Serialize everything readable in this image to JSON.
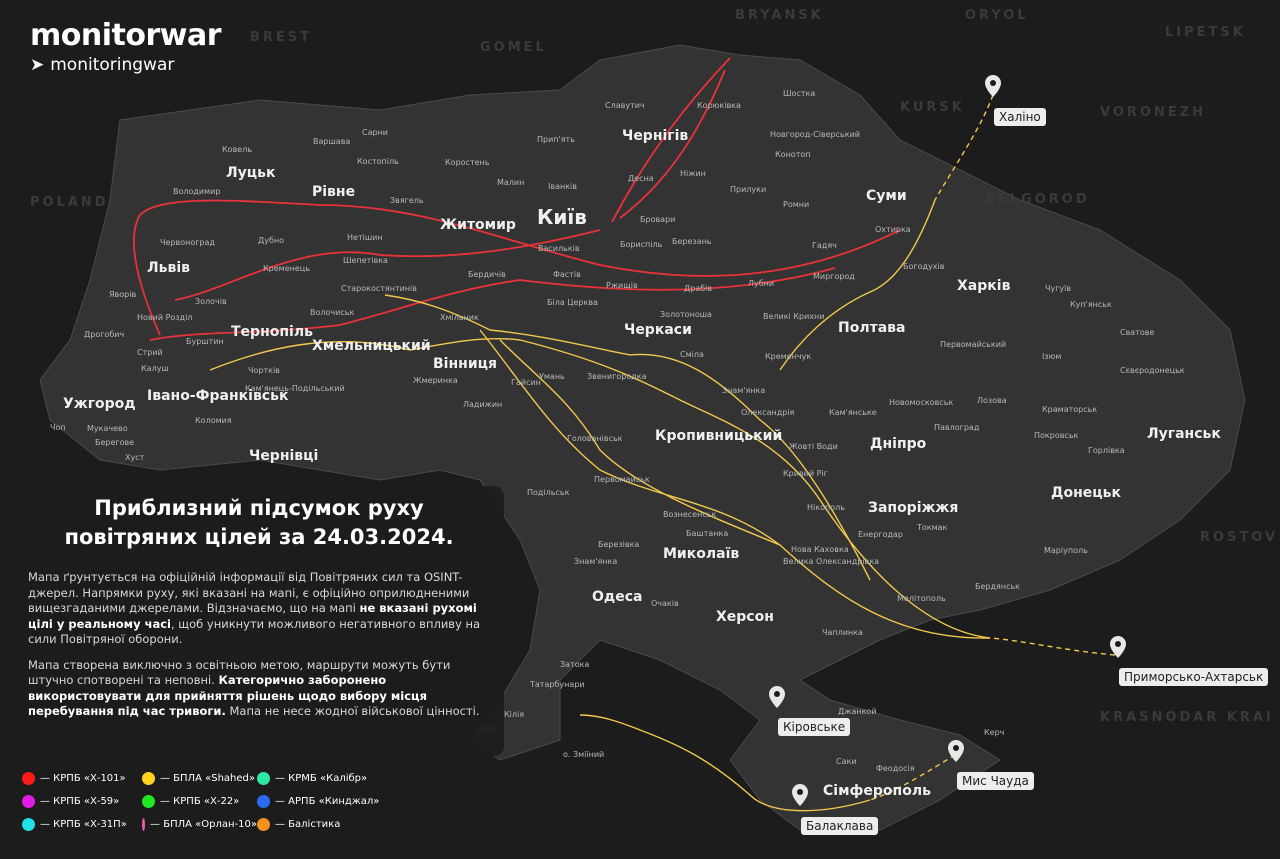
{
  "brand": {
    "name": "monitorwar",
    "telegram": "monitoringwar",
    "icon": "telegram-icon"
  },
  "countries": [
    "POLAND",
    "BRYANSK",
    "ORYOL",
    "LIPETSK",
    "KURSK",
    "VORONEZH",
    "BELGOROD",
    "BREST",
    "GOMEL",
    "KRASNODAR KRAI",
    "ROSTOV"
  ],
  "major_cities": [
    "Київ",
    "Чернігів",
    "Суми",
    "Харків",
    "Полтава",
    "Луцьк",
    "Рівне",
    "Житомир",
    "Львів",
    "Тернопіль",
    "Хмельницький",
    "Вінниця",
    "Черкаси",
    "Івано-Франківськ",
    "Ужгород",
    "Чернівці",
    "Кропивницький",
    "Дніпро",
    "Луганськ",
    "Донецьк",
    "Запоріжжя",
    "Миколаїв",
    "Одеса",
    "Херсон",
    "Сімферополь"
  ],
  "towns": [
    "Славутич",
    "Корюківка",
    "Шостка",
    "Сарни",
    "Ковель",
    "Варшава",
    "Костопіль",
    "Прип'ять",
    "Новгород-Сіверський",
    "Коростень",
    "Малин",
    "Іванків",
    "Ніжин",
    "Конотоп",
    "Прилуки",
    "Ромни",
    "Охтирка",
    "Гадяч",
    "Володимир",
    "Звягель",
    "Деснa",
    "Бровари",
    "Бориспіль",
    "Березань",
    "Червоноград",
    "Дубно",
    "Нетішин",
    "Бердичів",
    "Васильків",
    "Фастів",
    "Біла Церква",
    "Ржищів",
    "Драбів",
    "Лубни",
    "Миргород",
    "Богодухів",
    "Чугуїв",
    "Куп'янськ",
    "Яворів",
    "Золочів",
    "Кременець",
    "Шепетівка",
    "Старокостянтинів",
    "Волочиськ",
    "Хмільник",
    "Золотоноша",
    "Сміла",
    "Великі Крихни",
    "Кременчук",
    "Первомайський",
    "Ізюм",
    "Сватове",
    "Новий Розділ",
    "Бурштин",
    "Дрогобич",
    "Стрий",
    "Калуш",
    "Чортків",
    "Кам'янець-Подільський",
    "Жмеринка",
    "Гайсин",
    "Умань",
    "Звенигородка",
    "Знам'янка",
    "Олександрія",
    "Кам'янське",
    "Новомосковськ",
    "Павлоград",
    "Лозова",
    "Краматорськ",
    "Сєвєродонецьк",
    "Покровськ",
    "Горлівка",
    "Чоп",
    "Мукачево",
    "Берегове",
    "Хуст",
    "Коломия",
    "Ладижин",
    "Голованівськ",
    "Жовті Води",
    "Кривий Ріг",
    "Нікополь",
    "Енергодар",
    "Токмак",
    "Маріуполь",
    "Бердянськ",
    "Мелітополь",
    "Подільськ",
    "Первомайськ",
    "Вознесенськ",
    "Баштанка",
    "Березівка",
    "Знам'янка",
    "Нова Каховка",
    "Велика Олександрівка",
    "Очаків",
    "Чаплинка",
    "Затока",
    "Татарбунари",
    "Ізмаїл",
    "Кілія",
    "о. Зміїний",
    "Джанкой",
    "Керч",
    "Феодосія",
    "Саки"
  ],
  "launch_points": [
    "Халіно",
    "Приморсько-Ахтарськ",
    "Кіровське",
    "Мис Чауда",
    "Балаклава"
  ],
  "panel": {
    "title": "Приблизний підсумок руху повітряних цілей за 24.03.2024.",
    "p1_a": "Мапа ґрунтується на офіційній інформації від Повітряних сил та OSINT-джерел. Напрямки руху, які вказані на мапі, є офіційно оприлюдненими вищезгаданими джерелами. Відзначаємо, що на мапі ",
    "p1_b": "не вказані рухомі цілі у реальному часі",
    "p1_c": ", щоб уникнути можливого негативного впливу на сили Повітряної оборони.",
    "p2_a": "Мапа створена виключно з освітньою метою, маршрути можуть бути штучно спотворені та неповні. ",
    "p2_b": "Категорично заборонено використовувати для прийняття рішень щодо вибору місця перебування під час тривоги.",
    "p2_c": " Мапа не несе жодної військової цінності."
  },
  "legend": [
    {
      "label": "— КРПБ «Х-101»",
      "color": "#ff1a1a"
    },
    {
      "label": "— БПЛА «Shahed»",
      "color": "#ffd21f"
    },
    {
      "label": "— КРМБ «Калібр»",
      "color": "#2ee8a6"
    },
    {
      "label": "— КРПБ «Х-59»",
      "color": "#e01be6"
    },
    {
      "label": "— КРПБ «Х-22»",
      "color": "#22e822"
    },
    {
      "label": "— АРПБ «Кинджал»",
      "color": "#2a6bf0"
    },
    {
      "label": "— КРПБ «Х-31П»",
      "color": "#20e0e8"
    },
    {
      "label": "— БПЛА «Орлан-10»",
      "color": "#e85aa8"
    },
    {
      "label": "— Балістика",
      "color": "#f5921e"
    }
  ],
  "route_colors": {
    "x101": "#e8323a",
    "shahed": "#f2c84b"
  }
}
